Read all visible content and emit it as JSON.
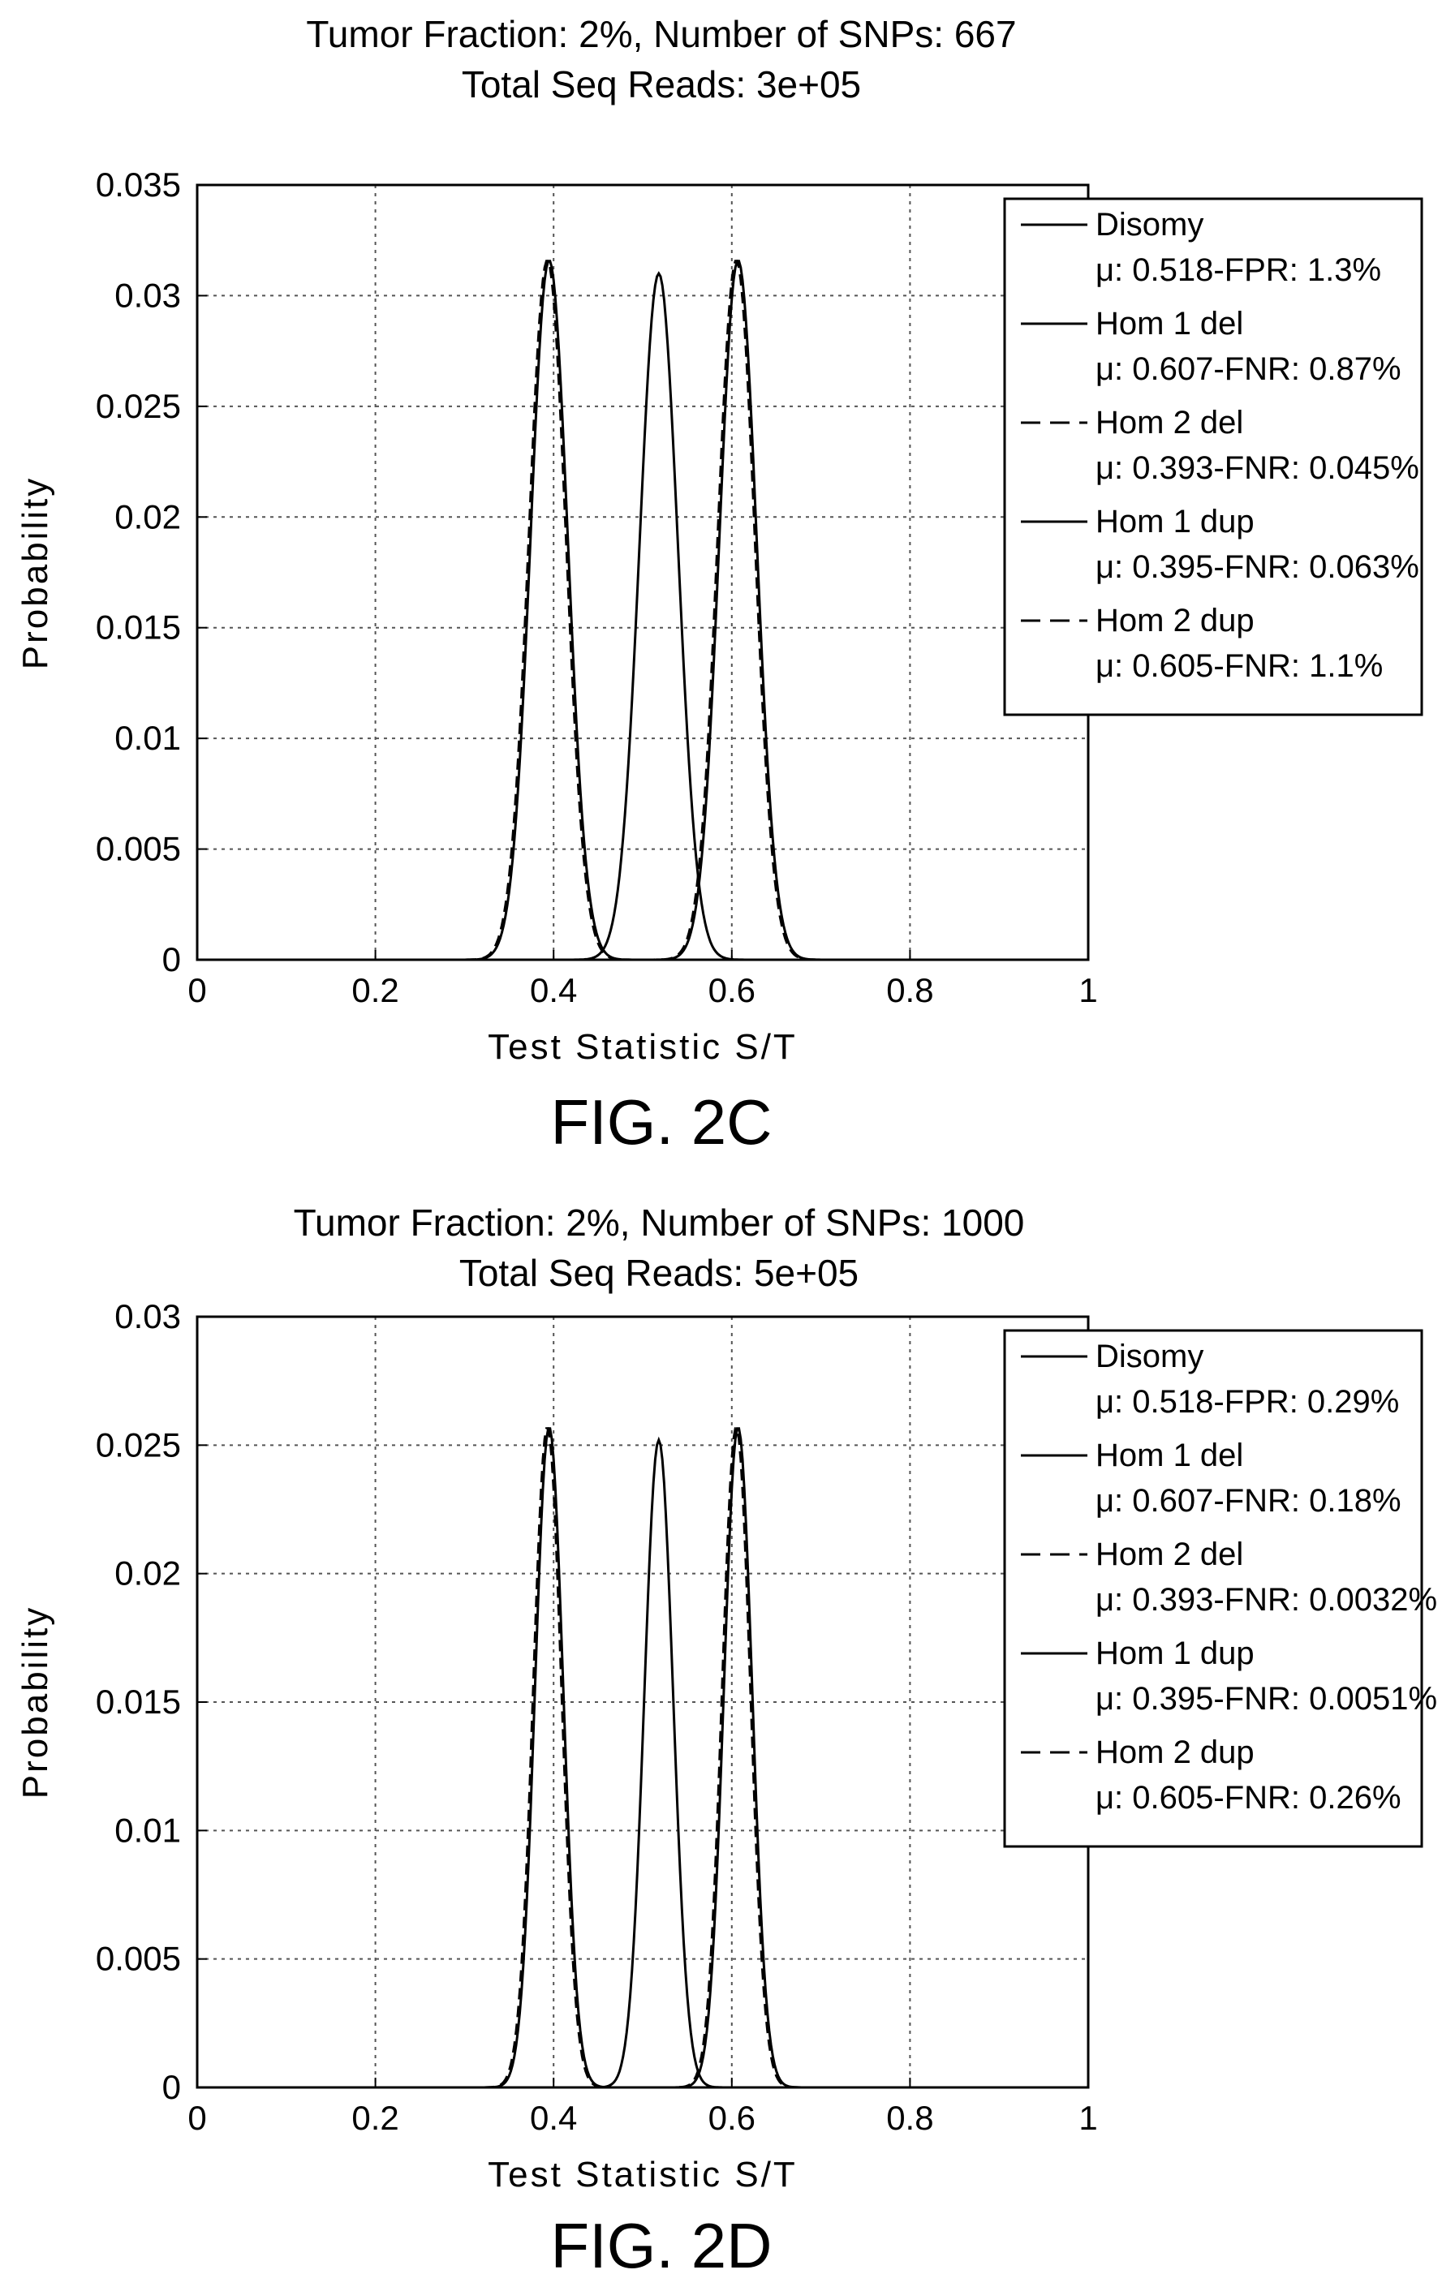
{
  "chart_data": [
    {
      "type": "line",
      "title": "Tumor Fraction: 2%, Number of SNPs: 667",
      "subtitle": "Total Seq Reads: 3e+05",
      "caption": "FIG. 2C",
      "xlabel": "Test Statistic S/T",
      "ylabel": "Probability",
      "xlim": [
        0,
        1
      ],
      "ylim": [
        0,
        0.035
      ],
      "xticks": [
        0,
        0.2,
        0.4,
        0.6,
        0.8,
        1
      ],
      "xtick_labels": [
        "0",
        "0.2",
        "0.4",
        "0.6",
        "0.8",
        "1"
      ],
      "yticks": [
        0,
        0.005,
        0.01,
        0.015,
        0.02,
        0.025,
        0.03,
        0.035
      ],
      "ytick_labels": [
        "0",
        "0.005",
        "0.01",
        "0.015",
        "0.02",
        "0.025",
        "0.03",
        "0.035"
      ],
      "grid": true,
      "legend_position": "top-right",
      "series": [
        {
          "name": "Disomy",
          "detail": "μ: 0.518-FPR: 1.3%",
          "mean": 0.518,
          "peak": 0.031,
          "sd": 0.0215,
          "dash": "solid"
        },
        {
          "name": "Hom 1 del",
          "detail": "μ: 0.607-FNR: 0.87%",
          "mean": 0.607,
          "peak": 0.0316,
          "sd": 0.0208,
          "dash": "solid"
        },
        {
          "name": "Hom 2 del",
          "detail": "μ: 0.393-FNR: 0.045%",
          "mean": 0.393,
          "peak": 0.0316,
          "sd": 0.0208,
          "dash": "dashed"
        },
        {
          "name": "Hom 1 dup",
          "detail": "μ: 0.395-FNR: 0.063%",
          "mean": 0.395,
          "peak": 0.0316,
          "sd": 0.0208,
          "dash": "solid"
        },
        {
          "name": "Hom 2 dup",
          "detail": "μ: 0.605-FNR: 1.1%",
          "mean": 0.605,
          "peak": 0.0316,
          "sd": 0.0208,
          "dash": "dashed"
        }
      ]
    },
    {
      "type": "line",
      "title": "Tumor Fraction: 2%, Number of SNPs: 1000",
      "subtitle": "Total Seq Reads: 5e+05",
      "caption": "FIG. 2D",
      "xlabel": "Test Statistic S/T",
      "ylabel": "Probability",
      "xlim": [
        0,
        1
      ],
      "ylim": [
        0,
        0.03
      ],
      "xticks": [
        0,
        0.2,
        0.4,
        0.6,
        0.8,
        1
      ],
      "xtick_labels": [
        "0",
        "0.2",
        "0.4",
        "0.6",
        "0.8",
        "1"
      ],
      "yticks": [
        0,
        0.005,
        0.01,
        0.015,
        0.02,
        0.025,
        0.03
      ],
      "ytick_labels": [
        "0",
        "0.005",
        "0.01",
        "0.015",
        "0.02",
        "0.025",
        "0.03"
      ],
      "grid": true,
      "legend_position": "top-right",
      "series": [
        {
          "name": "Disomy",
          "detail": "μ: 0.518-FPR: 0.29%",
          "mean": 0.518,
          "peak": 0.0252,
          "sd": 0.0162,
          "dash": "solid"
        },
        {
          "name": "Hom 1 del",
          "detail": "μ: 0.607-FNR: 0.18%",
          "mean": 0.607,
          "peak": 0.0257,
          "sd": 0.0158,
          "dash": "solid"
        },
        {
          "name": "Hom 2 del",
          "detail": "μ: 0.393-FNR: 0.0032%",
          "mean": 0.393,
          "peak": 0.0257,
          "sd": 0.0158,
          "dash": "dashed"
        },
        {
          "name": "Hom 1 dup",
          "detail": "μ: 0.395-FNR: 0.0051%",
          "mean": 0.395,
          "peak": 0.0257,
          "sd": 0.0158,
          "dash": "solid"
        },
        {
          "name": "Hom 2 dup",
          "detail": "μ: 0.605-FNR: 0.26%",
          "mean": 0.605,
          "peak": 0.0257,
          "sd": 0.0158,
          "dash": "dashed"
        }
      ]
    }
  ]
}
